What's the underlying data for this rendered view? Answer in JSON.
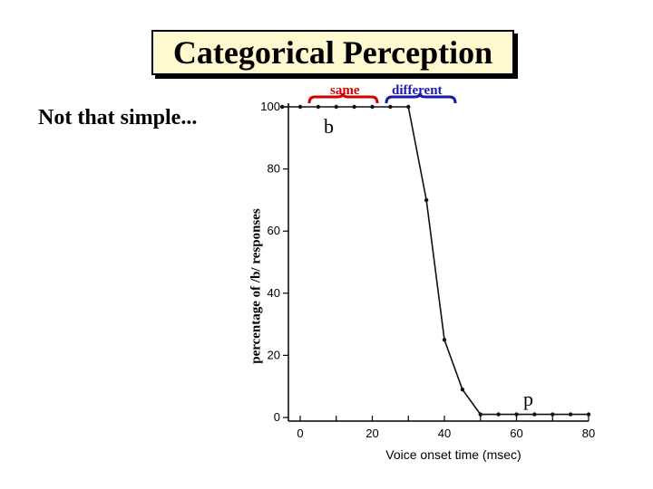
{
  "slide": {
    "title": "Categorical Perception",
    "subtitle": "Not that simple...",
    "bracket_same": "same",
    "bracket_different": "different",
    "label_b": "b",
    "label_p": "p"
  },
  "colors": {
    "same": "#d40000",
    "different": "#1a1ab0",
    "title_bg": "#fff9cf"
  },
  "chart_data": {
    "type": "line",
    "title": "",
    "xlabel": "Voice onset time (msec)",
    "ylabel": "percentage of /b/ responses",
    "xlim": [
      -5,
      80
    ],
    "ylim": [
      0,
      100
    ],
    "xticks": [
      0,
      20,
      40,
      60,
      80
    ],
    "yticks": [
      0,
      20,
      40,
      60,
      80,
      100
    ],
    "series": [
      {
        "x": [
          -5,
          0,
          5,
          10,
          15,
          20,
          25,
          30,
          35,
          40,
          45,
          50,
          55,
          60,
          65,
          70,
          75,
          80
        ],
        "y": [
          100,
          100,
          100,
          100,
          100,
          100,
          100,
          100,
          70,
          25,
          9,
          1,
          1,
          1,
          1,
          1,
          1,
          1
        ]
      }
    ]
  }
}
